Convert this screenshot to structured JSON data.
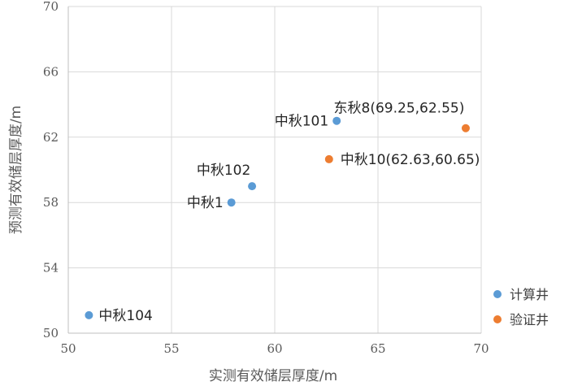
{
  "chart_data": {
    "type": "scatter",
    "xlabel": "实测有效储层厚度/m",
    "ylabel": "预测有效储层厚度/m",
    "xlim": [
      50,
      70
    ],
    "ylim": [
      50,
      70
    ],
    "xticks": [
      50,
      55,
      60,
      65,
      70
    ],
    "yticks": [
      50,
      54,
      58,
      62,
      66,
      70
    ],
    "grid": true,
    "legend_position": "bottom-right",
    "series": [
      {
        "name": "计算井",
        "color": "#5b9bd5",
        "points": [
          {
            "x": 51.0,
            "y": 51.1,
            "label": "中秋104"
          },
          {
            "x": 57.9,
            "y": 58.0,
            "label": "中秋1"
          },
          {
            "x": 58.9,
            "y": 59.0,
            "label": "中秋102"
          },
          {
            "x": 63.0,
            "y": 63.0,
            "label": "中秋101"
          }
        ]
      },
      {
        "name": "验证井",
        "color": "#ed7d31",
        "points": [
          {
            "x": 62.63,
            "y": 60.65,
            "label": "中秋10(62.63,60.65)"
          },
          {
            "x": 69.25,
            "y": 62.55,
            "label": "东秋8(69.25,62.55)"
          }
        ]
      }
    ]
  }
}
